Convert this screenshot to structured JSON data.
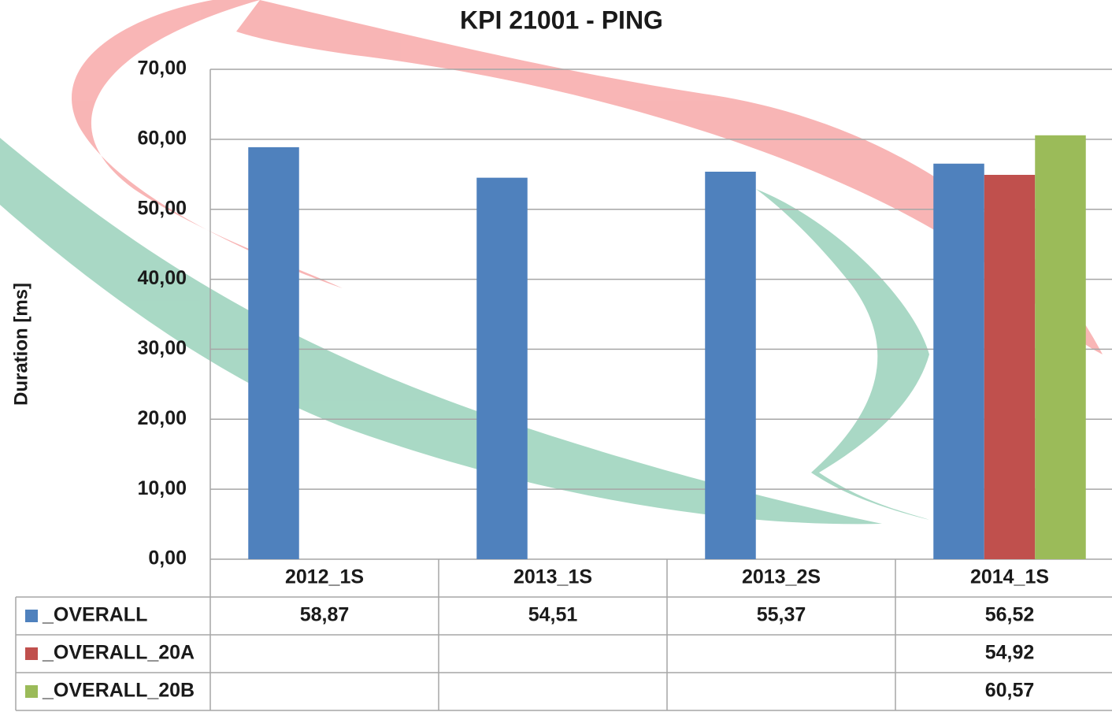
{
  "chart_data": {
    "type": "bar",
    "title": "KPI 21001 - PING",
    "y_label": "Duration [ms]",
    "categories": [
      "2012_1S",
      "2013_1S",
      "2013_2S",
      "2014_1S"
    ],
    "series": [
      {
        "name": "_OVERALL",
        "color": "#4f81bd",
        "values": [
          58.87,
          54.51,
          55.37,
          56.52
        ],
        "value_labels": [
          "58,87",
          "54,51",
          "55,37",
          "56,52"
        ]
      },
      {
        "name": "_OVERALL_20A",
        "color": "#c0504d",
        "values": [
          null,
          null,
          null,
          54.92
        ],
        "value_labels": [
          null,
          null,
          null,
          "54,92"
        ]
      },
      {
        "name": "_OVERALL_20B",
        "color": "#9bbb59",
        "values": [
          null,
          null,
          null,
          60.57
        ],
        "value_labels": [
          null,
          null,
          null,
          "60,57"
        ]
      }
    ],
    "ylim": [
      0,
      70
    ],
    "yticks": [
      {
        "value": 0,
        "label": "0,00"
      },
      {
        "value": 10,
        "label": "10,00"
      },
      {
        "value": 20,
        "label": "20,00"
      },
      {
        "value": 30,
        "label": "30,00"
      },
      {
        "value": 40,
        "label": "40,00"
      },
      {
        "value": 50,
        "label": "50,00"
      },
      {
        "value": 60,
        "label": "60,00"
      },
      {
        "value": 70,
        "label": "70,00"
      }
    ],
    "grid": true
  }
}
